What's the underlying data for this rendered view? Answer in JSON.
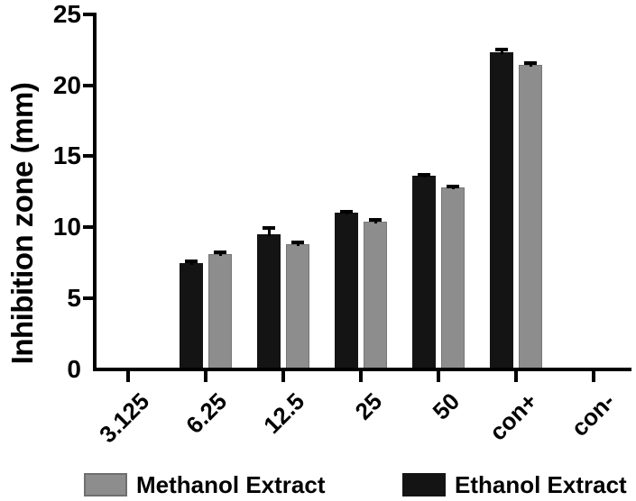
{
  "chart_data": {
    "type": "bar",
    "title": "",
    "xlabel": "",
    "ylabel": "Inhibition zone (mm)",
    "ylim": [
      0,
      25
    ],
    "yticks": [
      0,
      5,
      10,
      15,
      20,
      25
    ],
    "categories": [
      "3.125",
      "6.25",
      "12.5",
      "25",
      "50",
      "con+",
      "con-"
    ],
    "series": [
      {
        "name": "Ethanol Extract",
        "color": "#141414",
        "values": [
          0,
          7.5,
          9.5,
          11.0,
          13.6,
          22.3,
          0
        ],
        "errors": [
          0,
          0.1,
          0.45,
          0.1,
          0.1,
          0.2,
          0
        ]
      },
      {
        "name": "Methanol Extract",
        "color": "#8d8d8d",
        "values": [
          0,
          8.1,
          8.8,
          10.4,
          12.8,
          21.4,
          0
        ],
        "errors": [
          0,
          0.15,
          0.15,
          0.15,
          0.1,
          0.15,
          0
        ]
      }
    ],
    "legend": [
      {
        "label": "Methanol Extract",
        "color": "#8d8d8d"
      },
      {
        "label": "Ethanol Extract",
        "color": "#141414"
      }
    ],
    "legend_position": "bottom",
    "grid": false,
    "axis_color": "#000000",
    "error_bar_color": "#000000"
  }
}
